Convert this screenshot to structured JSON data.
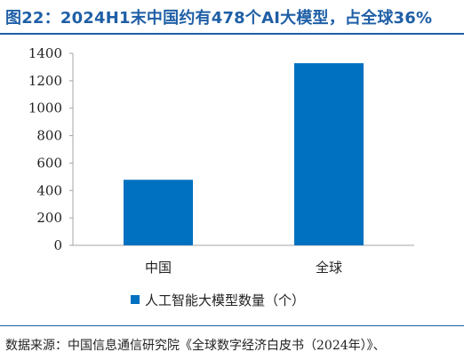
{
  "title": "图22：2024H1末中国约有478个AI大模型，占全球36%",
  "source": "数据来源：中国信息通信研究院《全球数字经济白皮书（2024年）》、",
  "colors": {
    "title": "#1f5fa6",
    "bar": "#0070c0",
    "axis": "#a6a6a6",
    "text": "#222222"
  },
  "chart_data": {
    "type": "bar",
    "categories": [
      "中国",
      "全球"
    ],
    "series": [
      {
        "name": "人工智能大模型数量（个）",
        "values": [
          478,
          1328
        ]
      }
    ],
    "yticks": [
      "0",
      "200",
      "400",
      "600",
      "800",
      "1000",
      "1200",
      "1400"
    ],
    "ylim": [
      0,
      1400
    ],
    "grid": false,
    "legend": "bottom-center"
  }
}
